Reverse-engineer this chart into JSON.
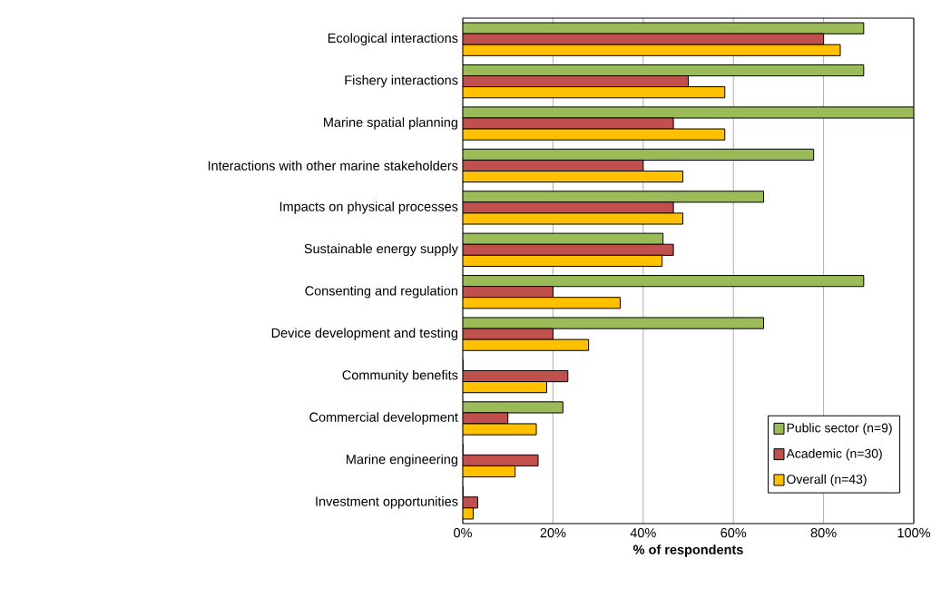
{
  "chart_data": {
    "type": "bar",
    "orientation": "horizontal",
    "xlabel": "% of respondents",
    "categories": [
      "Ecological interactions",
      "Fishery interactions",
      "Marine spatial planning",
      "Interactions with other marine stakeholders",
      "Impacts on physical processes",
      "Sustainable energy supply",
      "Consenting and regulation",
      "Device development and testing",
      "Community benefits",
      "Commercial development",
      "Marine engineering",
      "Investment opportunities"
    ],
    "series": [
      {
        "name": "Public sector (n=9)",
        "color": "#9bbb59",
        "values": [
          88.9,
          88.9,
          100,
          77.8,
          66.7,
          44.4,
          88.9,
          66.7,
          0,
          22.2,
          0,
          0
        ]
      },
      {
        "name": "Academic (n=30)",
        "color": "#c0504d",
        "values": [
          80,
          50,
          46.7,
          40,
          46.7,
          46.7,
          20,
          20,
          23.3,
          10,
          16.7,
          3.3
        ]
      },
      {
        "name": "Overall (n=43)",
        "color": "#ffc000",
        "values": [
          83.7,
          58.1,
          58.1,
          48.8,
          48.8,
          44.2,
          34.9,
          27.9,
          18.6,
          16.3,
          11.6,
          2.3
        ]
      }
    ],
    "xlim": [
      0,
      100
    ],
    "xticks": [
      {
        "value": 0,
        "label": "0%"
      },
      {
        "value": 20,
        "label": "20%"
      },
      {
        "value": 40,
        "label": "40%"
      },
      {
        "value": 60,
        "label": "60%"
      },
      {
        "value": 80,
        "label": "80%"
      },
      {
        "value": 100,
        "label": "100%"
      }
    ],
    "grid": "x",
    "legend": "bottom right"
  }
}
